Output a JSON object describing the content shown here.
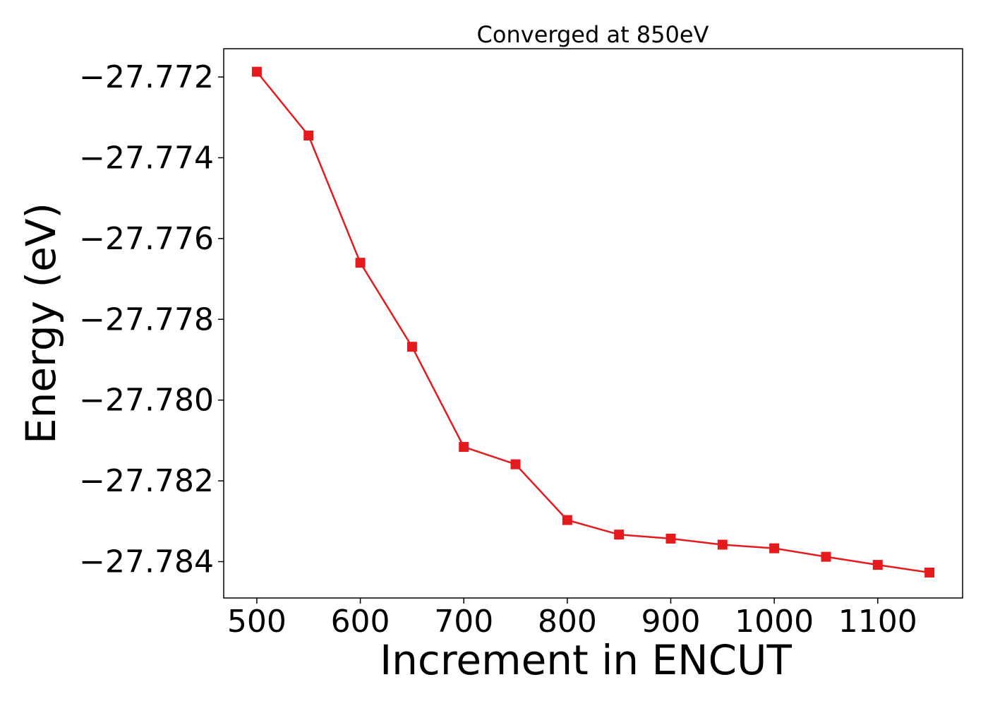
{
  "chart_data": {
    "type": "line",
    "title": "Converged at 850eV",
    "xlabel": "Increment in ENCUT",
    "ylabel": "Energy (eV)",
    "xlim": [
      468,
      1182
    ],
    "ylim": [
      -27.7849,
      -27.7713
    ],
    "xticks": [
      500,
      600,
      700,
      800,
      900,
      1000,
      1100
    ],
    "xtick_labels": [
      "500",
      "600",
      "700",
      "800",
      "900",
      "1000",
      "1100"
    ],
    "yticks": [
      -27.772,
      -27.774,
      -27.776,
      -27.778,
      -27.78,
      -27.782,
      -27.784
    ],
    "ytick_labels": [
      "−27.772",
      "−27.774",
      "−27.776",
      "−27.778",
      "−27.780",
      "−27.782",
      "−27.784"
    ],
    "grid": false,
    "series": [
      {
        "color": "#e41a1c",
        "marker": "square",
        "x": [
          500,
          550,
          600,
          650,
          700,
          750,
          800,
          850,
          900,
          950,
          1000,
          1050,
          1100,
          1150
        ],
        "y": [
          -27.77187,
          -27.77345,
          -27.7766,
          -27.77868,
          -27.78116,
          -27.78159,
          -27.78297,
          -27.78333,
          -27.78343,
          -27.78358,
          -27.78367,
          -27.78388,
          -27.78408,
          -27.78427
        ]
      }
    ]
  }
}
